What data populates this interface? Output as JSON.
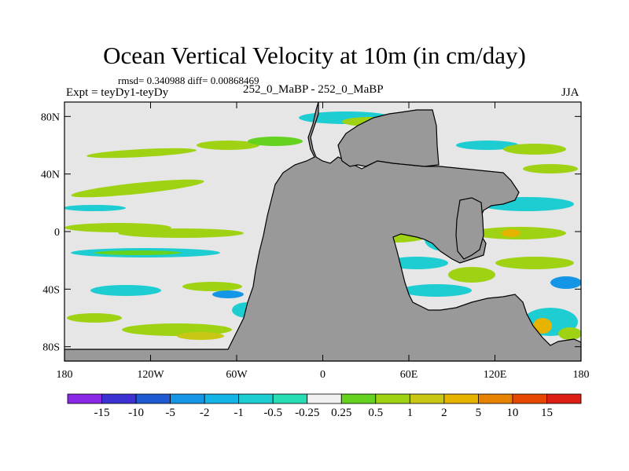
{
  "figure": {
    "title": "Ocean Vertical Velocity at 10m (in cm/day)",
    "stats_line": "rmsd= 0.340988 diff= 0.00868469",
    "left_label": "Expt = teyDy1-teyDy",
    "center_label": "252_0_MaBP - 252_0_MaBP",
    "right_label": "JJA"
  },
  "map": {
    "lon_range": [
      -180,
      180
    ],
    "lat_range": [
      -90,
      90
    ],
    "x_ticks": [
      {
        "lon": -180,
        "label": "180"
      },
      {
        "lon": -120,
        "label": "120W"
      },
      {
        "lon": -60,
        "label": "60W"
      },
      {
        "lon": 0,
        "label": "0"
      },
      {
        "lon": 60,
        "label": "60E"
      },
      {
        "lon": 120,
        "label": "120E"
      },
      {
        "lon": 180,
        "label": "180"
      }
    ],
    "y_ticks": [
      {
        "lat": 80,
        "label": "80N"
      },
      {
        "lat": 40,
        "label": "40N"
      },
      {
        "lat": 0,
        "label": "0"
      },
      {
        "lat": -40,
        "label": "40S"
      },
      {
        "lat": -80,
        "label": "80S"
      }
    ],
    "colors": {
      "ocean": "#e6e6e6",
      "land": "#999999",
      "coast": "#000000"
    }
  },
  "colorbar": {
    "labels": [
      "-15",
      "-10",
      "-5",
      "-2",
      "-1",
      "-0.5",
      "-0.25",
      "0.25",
      "0.5",
      "1",
      "2",
      "5",
      "10",
      "15"
    ],
    "colors": [
      "#8a28e6",
      "#3c32d2",
      "#1e5ad2",
      "#1496e6",
      "#14b4e6",
      "#1ecdd2",
      "#28dcb4",
      "#f0f0f0",
      "#64d21e",
      "#a0d214",
      "#c8c814",
      "#e6b400",
      "#e68200",
      "#e64600",
      "#dc1e14"
    ]
  }
}
